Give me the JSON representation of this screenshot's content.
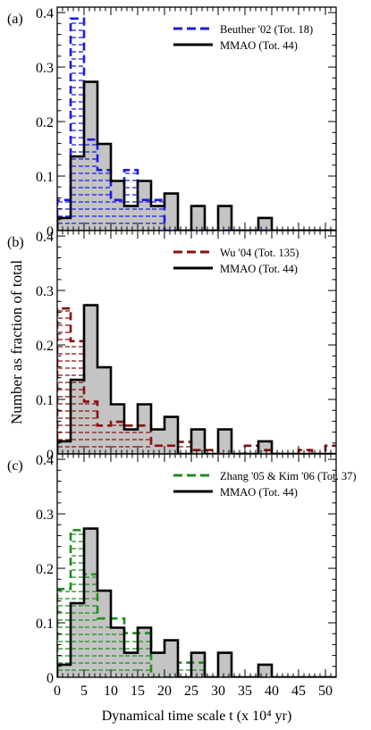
{
  "figure": {
    "ylabel": "Number as fraction of total",
    "xlabel": "Dynamical time scale t (x 10⁴ yr)",
    "x_ticks": [
      "0",
      "5",
      "10",
      "15",
      "20",
      "25",
      "30",
      "35",
      "40",
      "45",
      "50"
    ],
    "y_ticks": [
      "0",
      "0.1",
      "0.2",
      "0.3",
      "0.4"
    ]
  },
  "chart_data": [
    {
      "type": "bar",
      "panel_label": "(a)",
      "bin_edges": [
        0,
        2.5,
        5,
        7.5,
        10,
        12.5,
        15,
        17.5,
        20,
        22.5,
        25,
        27.5,
        30,
        32.5,
        35,
        37.5,
        40,
        42.5,
        45,
        47.5,
        50,
        52.5
      ],
      "xlim": [
        0,
        52
      ],
      "ylim": [
        0,
        0.41
      ],
      "series": [
        {
          "name": "Beuther '02 (Tot. 18)",
          "color": "#1a1ae6",
          "style": "dashed-hatched",
          "values": [
            0.056,
            0.389,
            0.167,
            0.111,
            0.056,
            0.111,
            0.056,
            0.056,
            0,
            0,
            0,
            0,
            0,
            0,
            0,
            0,
            0,
            0,
            0,
            0,
            0
          ]
        },
        {
          "name": "MMAO (Tot. 44)",
          "color": "#000000",
          "style": "solid-gray",
          "values": [
            0.023,
            0.136,
            0.273,
            0.159,
            0.091,
            0.045,
            0.091,
            0.045,
            0.068,
            0,
            0.045,
            0,
            0.045,
            0,
            0,
            0.023,
            0,
            0,
            0,
            0,
            0
          ]
        }
      ]
    },
    {
      "type": "bar",
      "panel_label": "(b)",
      "bin_edges": [
        0,
        2.5,
        5,
        7.5,
        10,
        12.5,
        15,
        17.5,
        20,
        22.5,
        25,
        27.5,
        30,
        32.5,
        35,
        37.5,
        40,
        42.5,
        45,
        47.5,
        50,
        52.5
      ],
      "xlim": [
        0,
        52
      ],
      "ylim": [
        0,
        0.41
      ],
      "series": [
        {
          "name": "Wu '04 (Tot. 135)",
          "color": "#8b1010",
          "style": "dashed-hatched",
          "values": [
            0.267,
            0.207,
            0.096,
            0.052,
            0.059,
            0.052,
            0.052,
            0.015,
            0.015,
            0.022,
            0.007,
            0.007,
            0,
            0,
            0.015,
            0.007,
            0,
            0,
            0.007,
            0,
            0.015
          ]
        },
        {
          "name": "MMAO (Tot. 44)",
          "color": "#000000",
          "style": "solid-gray",
          "values": [
            0.023,
            0.136,
            0.273,
            0.159,
            0.091,
            0.045,
            0.091,
            0.045,
            0.068,
            0,
            0.045,
            0,
            0.045,
            0,
            0,
            0.023,
            0,
            0,
            0,
            0,
            0
          ]
        }
      ]
    },
    {
      "type": "bar",
      "panel_label": "(c)",
      "bin_edges": [
        0,
        2.5,
        5,
        7.5,
        10,
        12.5,
        15,
        17.5,
        20,
        22.5,
        25,
        27.5,
        30,
        32.5,
        35,
        37.5,
        40,
        42.5,
        45,
        47.5,
        50,
        52.5
      ],
      "xlim": [
        0,
        52
      ],
      "ylim": [
        0,
        0.41
      ],
      "series": [
        {
          "name": "Zhang '05 & Kim '06 (Tot. 37)",
          "color": "#1e8c1e",
          "style": "dashed-hatched",
          "values": [
            0.162,
            0.27,
            0.189,
            0.108,
            0.108,
            0.081,
            0.081,
            0,
            0,
            0.027,
            0.027,
            0,
            0,
            0,
            0,
            0,
            0,
            0,
            0,
            0,
            0
          ]
        },
        {
          "name": "MMAO (Tot. 44)",
          "color": "#000000",
          "style": "solid-gray",
          "values": [
            0.023,
            0.136,
            0.273,
            0.159,
            0.091,
            0.045,
            0.091,
            0.045,
            0.068,
            0,
            0.045,
            0,
            0.045,
            0,
            0,
            0.023,
            0,
            0,
            0,
            0,
            0
          ]
        }
      ]
    }
  ]
}
